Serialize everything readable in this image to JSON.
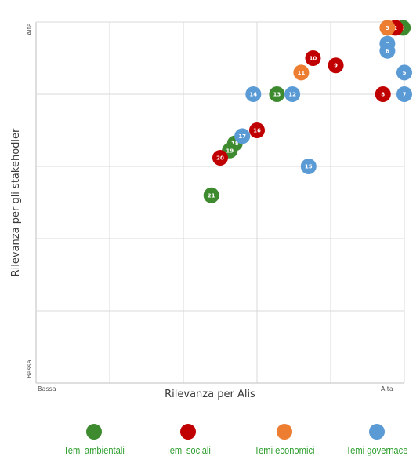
{
  "chart_data": {
    "type": "scatter",
    "xlabel": "Rilevanza per Alis",
    "ylabel": "Rilevanza per gli stakehodler",
    "x_tick_low": "Bassa",
    "x_tick_high": "Alta",
    "y_tick_low": "Bassa",
    "y_tick_high": "Alta",
    "xlim": [
      0,
      5
    ],
    "ylim": [
      0,
      5
    ],
    "grid": true,
    "legend_position": "bottom",
    "series": [
      {
        "name": "Temi ambientali",
        "color": "#3e8a2f",
        "points": [
          {
            "label": "1",
            "x": 4.98,
            "y": 4.92
          },
          {
            "label": "13",
            "x": 3.27,
            "y": 4.0
          },
          {
            "label": "18",
            "x": 2.7,
            "y": 3.32
          },
          {
            "label": "19",
            "x": 2.63,
            "y": 3.22
          },
          {
            "label": "21",
            "x": 2.38,
            "y": 2.6
          }
        ]
      },
      {
        "name": "Temi sociali",
        "color": "#c00000",
        "points": [
          {
            "label": "2",
            "x": 4.88,
            "y": 4.92
          },
          {
            "label": "8",
            "x": 4.71,
            "y": 4.0
          },
          {
            "label": "9",
            "x": 4.07,
            "y": 4.4
          },
          {
            "label": "10",
            "x": 3.76,
            "y": 4.5
          },
          {
            "label": "16",
            "x": 3.0,
            "y": 3.5
          },
          {
            "label": "20",
            "x": 2.5,
            "y": 3.12
          }
        ]
      },
      {
        "name": "Temi economici",
        "color": "#ed7d31",
        "points": [
          {
            "label": "3",
            "x": 4.77,
            "y": 4.92
          },
          {
            "label": "11",
            "x": 3.6,
            "y": 4.3
          }
        ]
      },
      {
        "name": "Temi governace",
        "color": "#5b9bd5",
        "points": [
          {
            "label": "4",
            "x": 4.77,
            "y": 4.7
          },
          {
            "label": "5",
            "x": 5.0,
            "y": 4.3
          },
          {
            "label": "6",
            "x": 4.77,
            "y": 4.6
          },
          {
            "label": "7",
            "x": 5.0,
            "y": 4.0
          },
          {
            "label": "12",
            "x": 3.48,
            "y": 4.0
          },
          {
            "label": "14",
            "x": 2.95,
            "y": 4.0
          },
          {
            "label": "15",
            "x": 3.7,
            "y": 3.0
          },
          {
            "label": "17",
            "x": 2.8,
            "y": 3.42
          }
        ]
      }
    ]
  }
}
